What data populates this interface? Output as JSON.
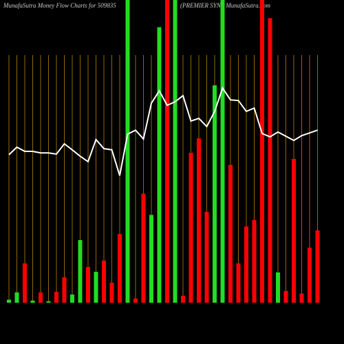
{
  "chart_data": {
    "type": "bar",
    "title": "MunafaSutra  Money Flow  Charts for 509835",
    "subtitle": "(PREMIER SYN.) MunafaSutra.com",
    "categories": [
      null,
      null,
      null,
      null,
      null,
      null,
      null,
      null,
      null,
      null,
      null,
      null,
      null,
      null,
      null,
      null,
      null,
      null,
      null,
      null,
      null,
      null,
      null,
      null,
      null,
      null,
      null,
      null,
      null,
      null,
      null,
      null,
      null,
      null,
      null,
      null,
      null,
      null,
      null,
      null
    ],
    "values": [
      1,
      3.4,
      13,
      0.7,
      3.4,
      0.5,
      3.6,
      8.4,
      2.7,
      20.7,
      11.8,
      10.2,
      13.9,
      6.6,
      22.7,
      100,
      1.4,
      36,
      29,
      91,
      100,
      100,
      2.3,
      49.5,
      54.3,
      30,
      71.8,
      100,
      45.5,
      13,
      25.2,
      27.3,
      100,
      94,
      10,
      3.9,
      47.5,
      3,
      18.2,
      23.9
    ],
    "colors": [
      "#22dd22",
      "#22dd22",
      "#ff0000",
      "#22dd22",
      "#ff0000",
      "#22dd22",
      "#ff0000",
      "#ff0000",
      "#22dd22",
      "#22dd22",
      "#ff0000",
      "#22dd22",
      "#ff0000",
      "#ff0000",
      "#ff0000",
      "#22dd22",
      "#ff0000",
      "#ff0000",
      "#22dd22",
      "#22dd22",
      "#ff0000",
      "#22dd22",
      "#ff0000",
      "#ff0000",
      "#ff0000",
      "#ff0000",
      "#22dd22",
      "#22dd22",
      "#ff0000",
      "#ff0000",
      "#ff0000",
      "#ff0000",
      "#ff0000",
      "#ff0000",
      "#22dd22",
      "#ff0000",
      "#ff0000",
      "#ff0000",
      "#ff0000",
      "#ff0000"
    ],
    "line": {
      "color": "#ffffff",
      "values": [
        48.9,
        51.4,
        50,
        50,
        49.5,
        49.5,
        49.1,
        52.5,
        50.5,
        48.4,
        46.6,
        53.9,
        50.9,
        50.5,
        42,
        55.7,
        57,
        54.1,
        65.9,
        70,
        65.2,
        66.4,
        68.4,
        60,
        60.9,
        58.2,
        63.2,
        70.9,
        67,
        66.8,
        63.2,
        64.3,
        55.9,
        54.8,
        56.4,
        55,
        53.6,
        55.2,
        56.1,
        57
      ]
    },
    "ylim": [
      0,
      100
    ],
    "grid": true,
    "grid_color": "#b8860b"
  }
}
